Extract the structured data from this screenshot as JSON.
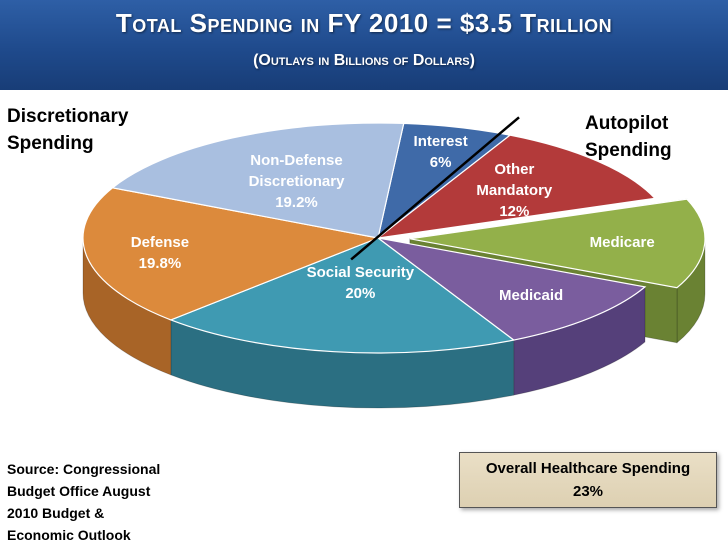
{
  "header": {
    "title": "Total Spending in FY 2010 = $3.5 Trillion",
    "subtitle": "(Outlays in Billions of Dollars)"
  },
  "groups": {
    "discretionary_line1": "Discretionary",
    "discretionary_line2": "Spending",
    "autopilot_line1": "Autopilot",
    "autopilot_line2": "Spending"
  },
  "chart_data": {
    "type": "pie",
    "title": "Total Spending in FY 2010 = $3.5 Trillion",
    "subtitle": "(Outlays in Billions of Dollars)",
    "unit": "percent",
    "slices": [
      {
        "name": "Interest",
        "label_lines": [
          "Interest",
          "6%"
        ],
        "value": 6,
        "display": "6%",
        "color": "#3f6aa8",
        "side": "#2c4f80",
        "group": "discretionary"
      },
      {
        "name": "Other Mandatory",
        "label_lines": [
          "Other",
          "Mandatory",
          "12%"
        ],
        "value": 12,
        "display": "12%",
        "color": "#b33a3a",
        "side": "#852626",
        "group": "autopilot"
      },
      {
        "name": "Medicare",
        "label_lines": [
          "Medicare"
        ],
        "value": 12.6,
        "display": "",
        "color": "#93b04a",
        "side": "#6a8233",
        "group": "autopilot",
        "exploded": true
      },
      {
        "name": "Medicaid",
        "label_lines": [
          "Medicaid"
        ],
        "value": 10.4,
        "display": "",
        "color": "#7a5d9e",
        "side": "#55407a",
        "group": "autopilot"
      },
      {
        "name": "Social Security",
        "label_lines": [
          "Social Security",
          "20%"
        ],
        "value": 20,
        "display": "20%",
        "color": "#3f9ab2",
        "side": "#2b6f82",
        "group": "autopilot"
      },
      {
        "name": "Defense",
        "label_lines": [
          "Defense",
          "19.8%"
        ],
        "value": 19.8,
        "display": "19.8%",
        "color": "#dc8a3c",
        "side": "#a86427",
        "group": "discretionary"
      },
      {
        "name": "Non-Defense Discretionary",
        "label_lines": [
          "Non-Defense",
          "Discretionary",
          "19.2%"
        ],
        "value": 19.2,
        "display": "19.2%",
        "color": "#a9bfe0",
        "side": "#8097b9",
        "group": "discretionary"
      }
    ]
  },
  "source": {
    "line1": "Source:  Congressional",
    "line2": "Budget Office August",
    "line3": "2010 Budget &",
    "line4": "Economic Outlook"
  },
  "healthcare": {
    "label": "Overall Healthcare Spending",
    "value": "23%"
  }
}
